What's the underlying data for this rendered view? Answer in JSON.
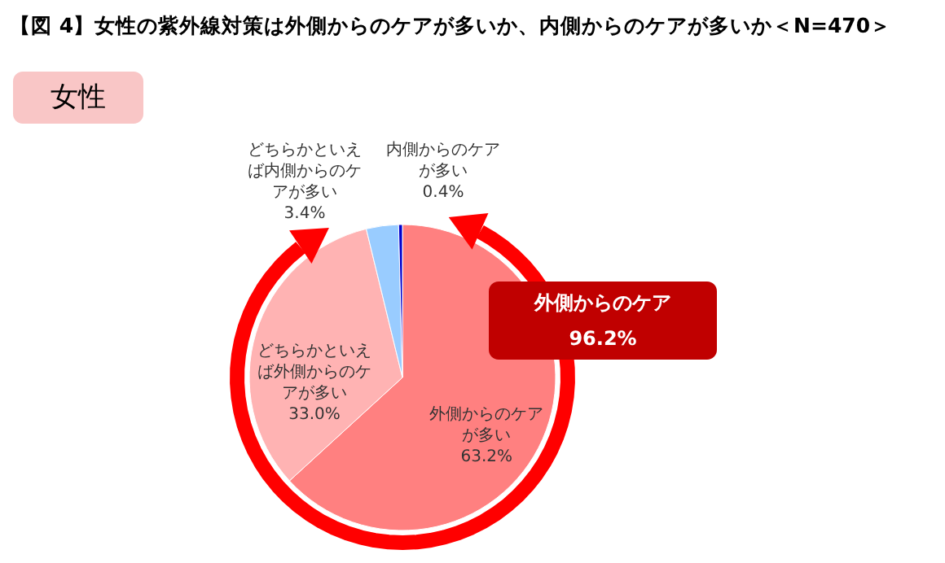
{
  "chart_data": {
    "type": "pie",
    "title": "【図 4】女性の紫外線対策は外側からのケアが多いか、内側からのケアが多いか＜N=470＞",
    "subtitle": "女性",
    "categories": [
      "外側からのケアが多い",
      "どちらかといえば外側からのケアが多い",
      "どちらかといえば内側からのケアが多い",
      "内側からのケアが多い"
    ],
    "values": [
      63.2,
      33.0,
      3.4,
      0.4
    ],
    "value_labels": [
      "63.2%",
      "33.0%",
      "3.4%",
      "0.4%"
    ],
    "colors": [
      "#ff8080",
      "#ffb3b3",
      "#99ccff",
      "#0000cc"
    ],
    "annotations": [
      "外側からのケア",
      "96.2%"
    ]
  }
}
